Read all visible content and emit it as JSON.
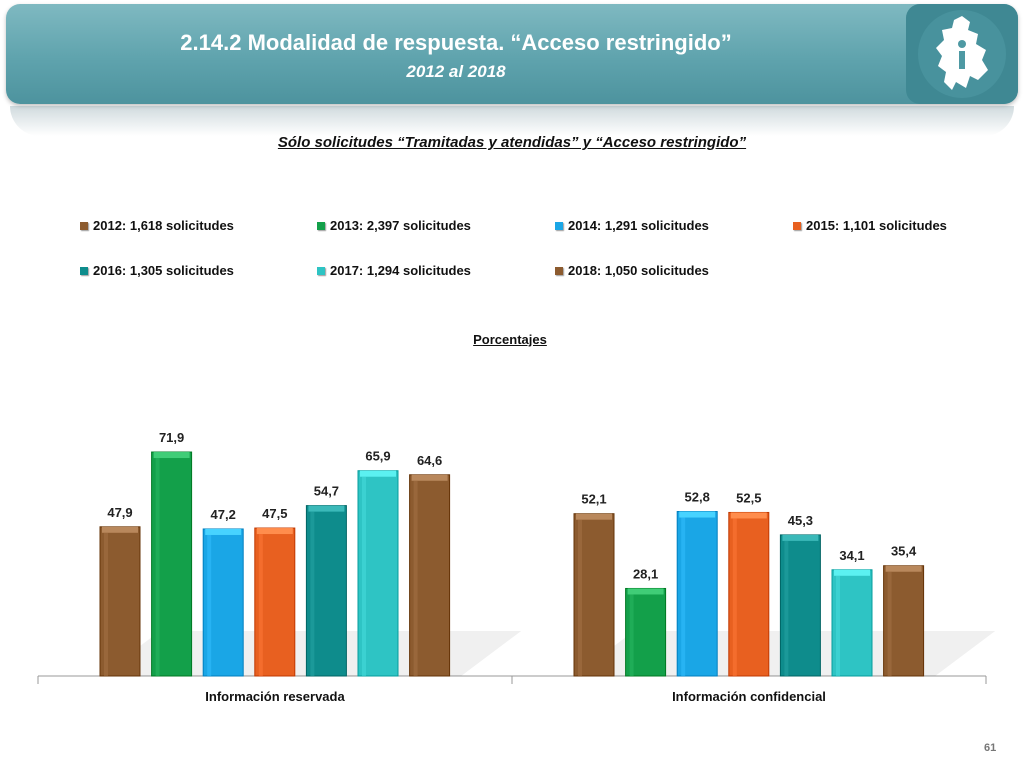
{
  "header": {
    "title": "2.14.2 Modalidad de respuesta. “Acceso restringido”",
    "subtitle": "2012 al 2018",
    "logo_icon": "cdmx-map-info-logo-icon"
  },
  "colors": {
    "banner": "#5fa3ad",
    "2012": "#8c5b2f",
    "2013": "#13a04a",
    "2014": "#1aa6e6",
    "2015": "#e86020",
    "2016": "#0e8c8c",
    "2017": "#2ec4c4",
    "2018": "#8c5b2f"
  },
  "chart_data": {
    "type": "bar",
    "title": "Sólo solicitudes “Tramitadas y atendidas” y “Acceso restringido”",
    "ylabel": "Porcentajes",
    "categories": [
      "Información reservada",
      "Información confidencial"
    ],
    "series": [
      {
        "name": "2012: 1,618 solicitudes",
        "values": [
          47.9,
          52.1
        ],
        "labels": [
          "47,9",
          "52,1"
        ],
        "color": "#8c5b2f"
      },
      {
        "name": "2013: 2,397 solicitudes",
        "values": [
          71.9,
          28.1
        ],
        "labels": [
          "71,9",
          "28,1"
        ],
        "color": "#13a04a"
      },
      {
        "name": "2014: 1,291 solicitudes",
        "values": [
          47.2,
          52.8
        ],
        "labels": [
          "47,2",
          "52,8"
        ],
        "color": "#1aa6e6"
      },
      {
        "name": "2015: 1,101 solicitudes",
        "values": [
          47.5,
          52.5
        ],
        "labels": [
          "47,5",
          "52,5"
        ],
        "color": "#e86020"
      },
      {
        "name": "2016: 1,305 solicitudes",
        "values": [
          54.7,
          45.3
        ],
        "labels": [
          "54,7",
          "45,3"
        ],
        "color": "#0e8c8c"
      },
      {
        "name": "2017: 1,294 solicitudes",
        "values": [
          65.9,
          34.1
        ],
        "labels": [
          "65,9",
          "34,1"
        ],
        "color": "#2ec4c4"
      },
      {
        "name": "2018: 1,050 solicitudes",
        "values": [
          64.6,
          35.4
        ],
        "labels": [
          "64,6",
          "35,4"
        ],
        "color": "#8c5b2f"
      }
    ],
    "ylim": [
      0,
      100
    ],
    "grid": false,
    "legend": "top"
  },
  "footer": {
    "page_number": "61"
  }
}
